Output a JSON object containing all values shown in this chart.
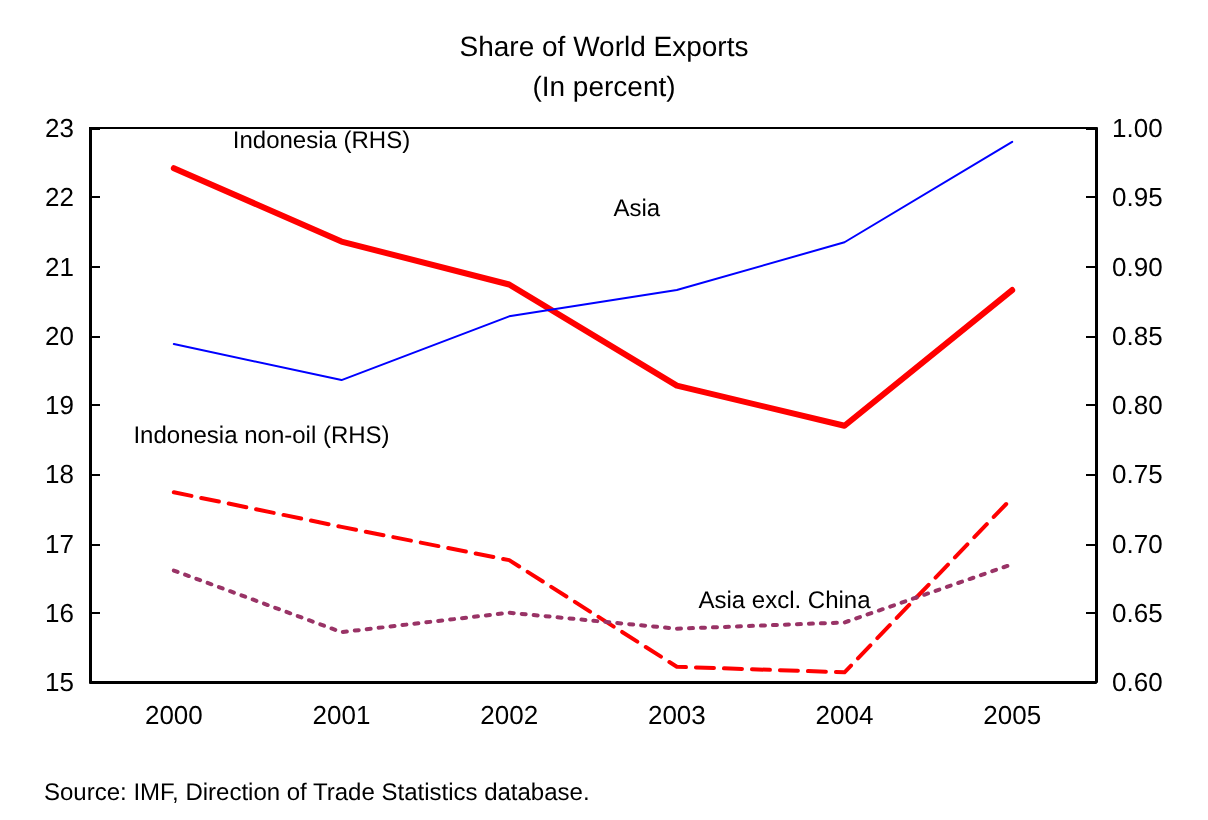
{
  "chart_data": {
    "type": "line",
    "title": "Share of World Exports",
    "subtitle": "(In percent)",
    "categories": [
      "2000",
      "2001",
      "2002",
      "2003",
      "2004",
      "2005"
    ],
    "series": [
      {
        "name": "Indonesia (RHS)",
        "color": "#ff0000",
        "axis": "y2",
        "line_style": "solid",
        "values": [
          0.971,
          0.918,
          0.887,
          0.814,
          0.785,
          0.883
        ]
      },
      {
        "name": "Asia",
        "color": "#0000ff",
        "line_style": "solid",
        "values": [
          19.88,
          19.36,
          20.28,
          20.66,
          21.35,
          22.8
        ]
      },
      {
        "name": "Indonesia non-oil (RHS)",
        "color": "#ff0000",
        "axis": "y2",
        "line_style": "dashed",
        "values": [
          0.737,
          0.712,
          0.688,
          0.611,
          0.607,
          0.733
        ]
      },
      {
        "name": "Asia excl. China",
        "color": "#993366",
        "line_style": "dotted",
        "values": [
          16.61,
          15.72,
          16.0,
          15.77,
          15.86,
          16.7
        ]
      }
    ],
    "ylim": [
      15,
      23
    ],
    "yticks": [
      15,
      16,
      17,
      18,
      19,
      20,
      21,
      22,
      23
    ],
    "y2lim": [
      0.6,
      1.0
    ],
    "y2ticks": [
      {
        "value": 0.6,
        "label": "0.60"
      },
      {
        "value": 0.65,
        "label": "0.65"
      },
      {
        "value": 0.7,
        "label": "0.70"
      },
      {
        "value": 0.75,
        "label": "0.75"
      },
      {
        "value": 0.8,
        "label": "0.80"
      },
      {
        "value": 0.85,
        "label": "0.85"
      },
      {
        "value": 0.9,
        "label": "0.90"
      },
      {
        "value": 0.95,
        "label": "0.95"
      },
      {
        "value": 1.0,
        "label": "1.00"
      }
    ],
    "grid": false,
    "legend": false,
    "marker": "none",
    "annotations": [
      "Source: IMF, Direction of Trade Statistics database."
    ]
  }
}
